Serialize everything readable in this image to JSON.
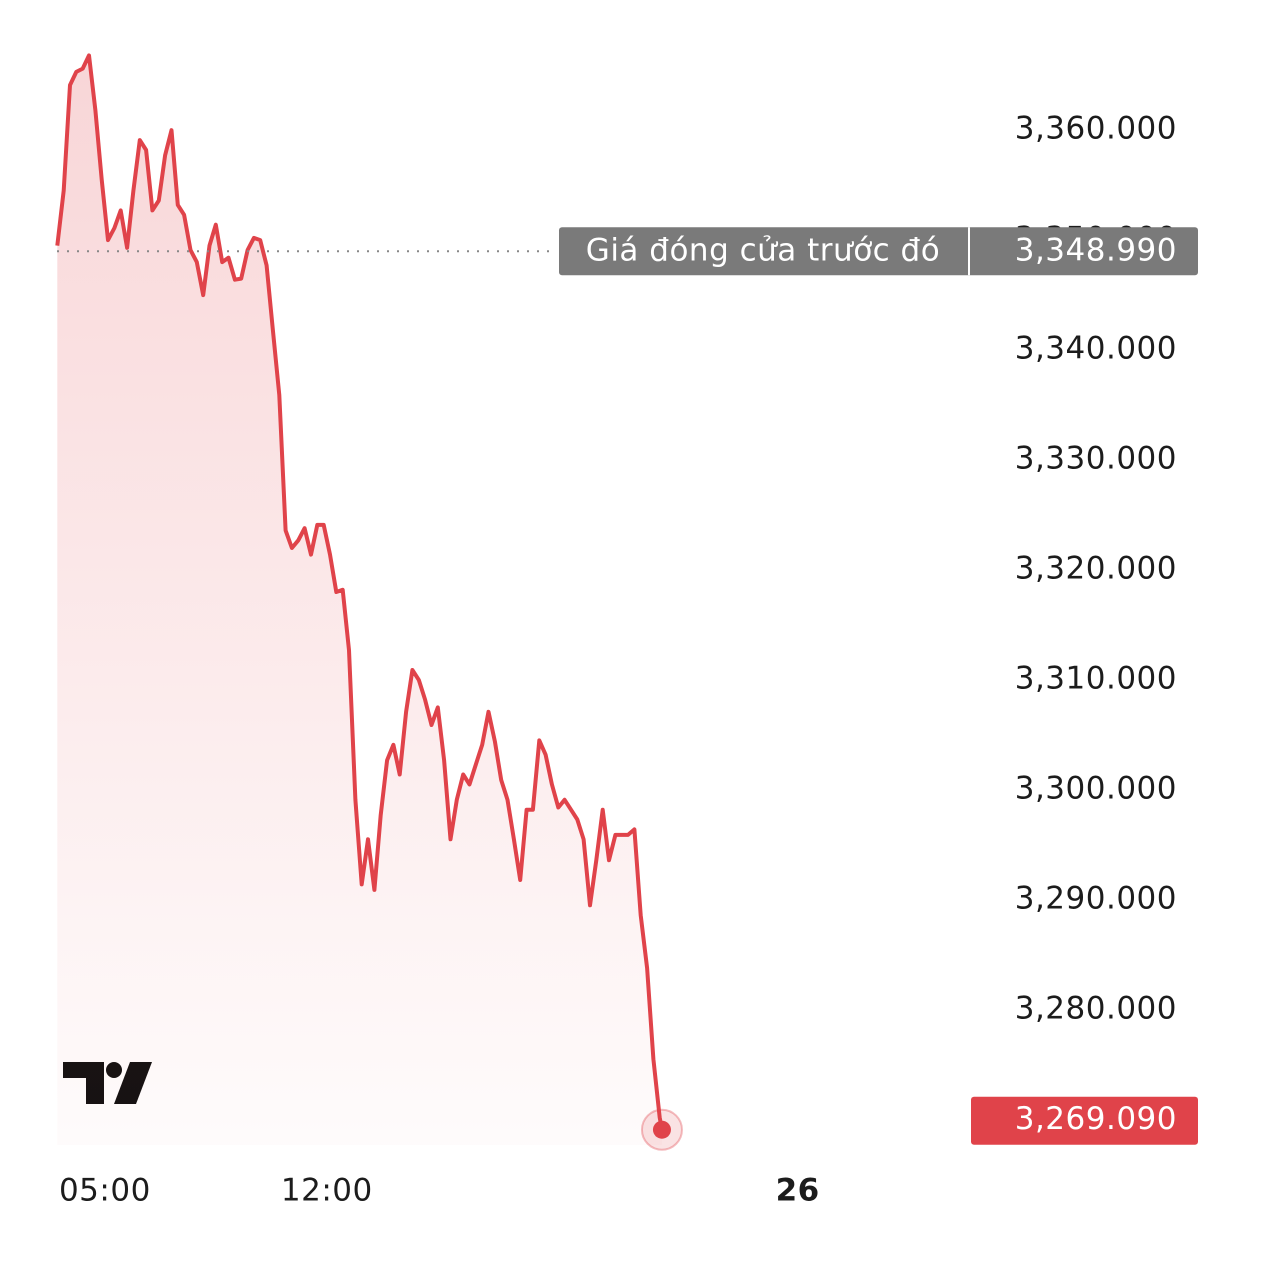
{
  "chart_data": {
    "type": "line",
    "color": "#e0434a",
    "x": [
      3.5,
      3.7,
      3.9,
      4.1,
      4.3,
      4.5,
      4.7,
      4.9,
      5.1,
      5.3,
      5.5,
      5.7,
      5.9,
      6.1,
      6.3,
      6.5,
      6.7,
      6.9,
      7.1,
      7.3,
      7.5,
      7.7,
      7.9,
      8.1,
      8.3,
      8.5,
      8.7,
      8.9,
      9.1,
      9.3,
      9.5,
      9.7,
      9.9,
      10.1,
      10.3,
      10.5,
      10.7,
      10.9,
      11.1,
      11.3,
      11.5,
      11.7,
      11.9,
      12.1,
      12.3,
      12.5,
      12.7,
      12.9,
      13.1,
      13.3,
      13.5,
      13.7,
      13.9,
      14.1,
      14.3,
      14.5,
      14.7,
      14.9,
      15.1,
      15.3,
      15.5,
      15.7,
      15.9,
      16.1,
      16.3,
      16.5,
      16.7,
      16.9,
      17.1,
      17.3,
      17.5,
      17.7,
      17.9,
      18.1,
      18.3,
      18.5,
      18.7,
      18.9,
      19.1,
      19.3,
      19.5,
      19.7,
      19.9,
      20.1,
      20.3,
      20.5,
      20.7,
      20.9,
      21.1,
      21.3,
      21.5,
      21.7,
      21.9,
      22.1,
      22.3,
      22.5,
      22.57
    ],
    "values": [
      3349.5,
      3354.5,
      3364.1,
      3365.3,
      3365.6,
      3366.8,
      3361.8,
      3355.5,
      3350.0,
      3351.1,
      3352.7,
      3349.3,
      3354.5,
      3359.1,
      3358.2,
      3352.7,
      3353.6,
      3357.7,
      3360.0,
      3353.2,
      3352.3,
      3349.1,
      3348.0,
      3345.0,
      3349.5,
      3351.4,
      3348.0,
      3348.4,
      3346.4,
      3346.5,
      3349.1,
      3350.2,
      3350.0,
      3347.7,
      3341.8,
      3335.9,
      3323.6,
      3322.0,
      3322.7,
      3323.8,
      3321.4,
      3324.1,
      3324.1,
      3321.4,
      3318.0,
      3318.2,
      3312.7,
      3299.1,
      3291.4,
      3295.5,
      3290.9,
      3297.7,
      3302.7,
      3304.1,
      3301.4,
      3307.1,
      3310.9,
      3310.0,
      3308.2,
      3305.9,
      3307.5,
      3302.7,
      3295.5,
      3299.1,
      3301.4,
      3300.5,
      3302.3,
      3304.1,
      3307.1,
      3304.4,
      3300.9,
      3299.1,
      3295.5,
      3291.8,
      3298.2,
      3298.2,
      3304.5,
      3303.2,
      3300.5,
      3298.4,
      3299.1,
      3298.2,
      3297.3,
      3295.5,
      3289.5,
      3293.6,
      3298.2,
      3293.6,
      3295.9,
      3295.9,
      3295.9,
      3296.4,
      3288.6,
      3283.8,
      3275.5,
      3270.2,
      3269.09
    ],
    "xlim": [
      3.49,
      31.97
    ],
    "xticks": [
      {
        "value": 5,
        "label": "05:00"
      },
      {
        "value": 12,
        "label": "12:00"
      },
      {
        "value": 26.85,
        "label": "26",
        "bold": true
      }
    ],
    "ylim": [
      3267.7,
      3368.2
    ],
    "yticks": [
      {
        "value": 3280,
        "label": "3,280.000"
      },
      {
        "value": 3290,
        "label": "3,290.000"
      },
      {
        "value": 3300,
        "label": "3,300.000"
      },
      {
        "value": 3310,
        "label": "3,310.000"
      },
      {
        "value": 3320,
        "label": "3,320.000"
      },
      {
        "value": 3330,
        "label": "3,330.000"
      },
      {
        "value": 3340,
        "label": "3,340.000"
      },
      {
        "value": 3350,
        "label": "3,350.000"
      },
      {
        "value": 3360,
        "label": "3,360.000"
      }
    ],
    "reference_line": {
      "label": "Giá đóng cửa trước đó",
      "value": 3348.99,
      "value_label": "3,348.990"
    },
    "last_price": {
      "value": 3269.09,
      "value_label": "3,269.090"
    }
  }
}
